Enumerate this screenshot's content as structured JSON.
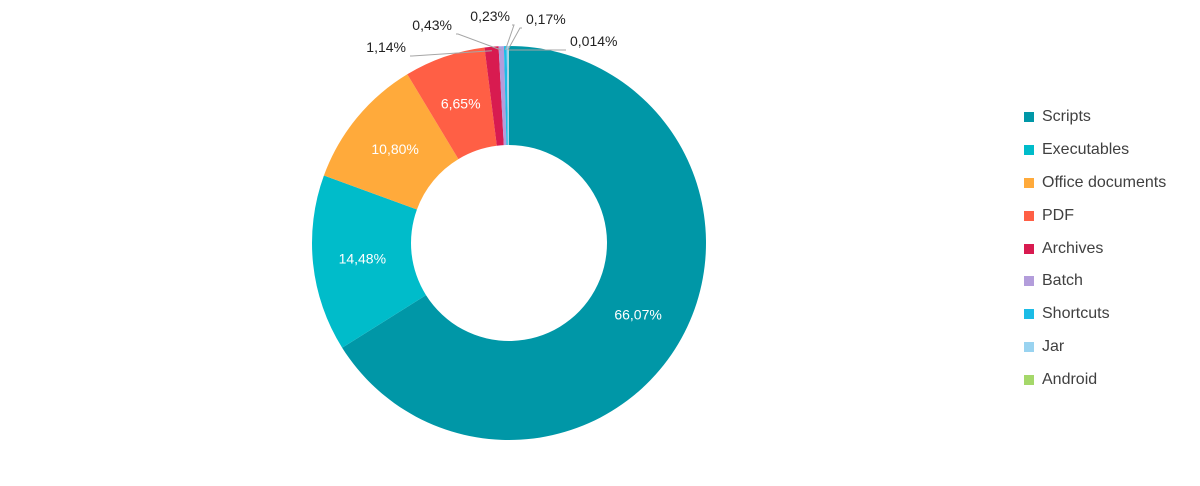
{
  "chart_data": {
    "type": "pie",
    "donut": true,
    "title": "",
    "legend_position": "right",
    "slices": [
      {
        "name": "Scripts",
        "value": 66.07,
        "label": "66,07%",
        "color": "#0097a7",
        "label_placement": "inside"
      },
      {
        "name": "Executables",
        "value": 14.48,
        "label": "14,48%",
        "color": "#00bcca",
        "label_placement": "inside"
      },
      {
        "name": "Office documents",
        "value": 10.8,
        "label": "10,80%",
        "color": "#ffaa3b",
        "label_placement": "inside"
      },
      {
        "name": "PDF",
        "value": 6.65,
        "label": "6,65%",
        "color": "#ff5f45",
        "label_placement": "inside"
      },
      {
        "name": "Archives",
        "value": 1.14,
        "label": "1,14%",
        "color": "#d81b50",
        "label_placement": "outside"
      },
      {
        "name": "Batch",
        "value": 0.43,
        "label": "0,43%",
        "color": "#b39ddb",
        "label_placement": "outside"
      },
      {
        "name": "Shortcuts",
        "value": 0.23,
        "label": "0,23%",
        "color": "#1cbce6",
        "label_placement": "outside"
      },
      {
        "name": "Jar",
        "value": 0.17,
        "label": "0,17%",
        "color": "#99d3f0",
        "label_placement": "outside"
      },
      {
        "name": "Android",
        "value": 0.014,
        "label": "0,014%",
        "color": "#a5d86a",
        "label_placement": "outside"
      }
    ]
  }
}
